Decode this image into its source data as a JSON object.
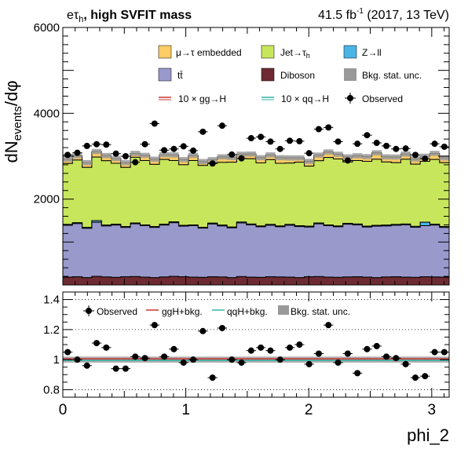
{
  "header": {
    "channel": "eτ",
    "channel_sub": "h",
    "category": ", high SVFIT mass",
    "lumi": "41.5 fb",
    "lumi_sup": "-1",
    "energy": " (2017, 13 TeV)"
  },
  "axes": {
    "ylabel_main": "dN",
    "ylabel_sub": "events",
    "ylabel_tail": "/dφ",
    "xlabel": "phi_2",
    "main_ticks": [
      "2000",
      "4000",
      "6000"
    ],
    "ratio_ticks": [
      "0.8",
      "1",
      "1.2",
      "1.4"
    ],
    "x_ticks": [
      "0",
      "1",
      "2",
      "3"
    ]
  },
  "legend_main": {
    "embedded": "μ→τ embedded",
    "jetfake": "Jet→τ",
    "jetfake_sub": "h",
    "zll": "Z→ll",
    "ttbar": "tt̄",
    "diboson": "Diboson",
    "bkgunc": "Bkg. stat. unc.",
    "ggh": "10 × gg→H",
    "qqh": "10 × qq→H",
    "observed": "Observed"
  },
  "legend_ratio": {
    "observed": "Observed",
    "ggh": "ggH+bkg.",
    "qqh": "qqH+bkg.",
    "bkgunc": "Bkg. stat. unc."
  },
  "colors": {
    "embedded": "#ffcc66",
    "jetfake": "#c8e65c",
    "zll": "#4ab4e6",
    "ttbar": "#9999cc",
    "diboson": "#6e2a32",
    "unc": "#999999",
    "ggh": "#cc3333",
    "qqh": "#33b3a6"
  },
  "chart_data": [
    {
      "type": "area",
      "title": "",
      "xlabel": "phi_2",
      "ylabel": "dN_events/dφ",
      "xlim": [
        0,
        3.14159
      ],
      "ylim": [
        0,
        6000
      ],
      "bins": 40,
      "stack_order": [
        "diboson",
        "ttbar",
        "zll",
        "jetfake",
        "embedded"
      ],
      "series": [
        {
          "name": "Diboson",
          "values": [
            180,
            190,
            170,
            200,
            185,
            175,
            190,
            195,
            180,
            170,
            185,
            200,
            190,
            180,
            175,
            190,
            185,
            170,
            195,
            180,
            175,
            190,
            185,
            180,
            170,
            190,
            195,
            180,
            175,
            185,
            190,
            180,
            170,
            185,
            190,
            180,
            175,
            190,
            185,
            180
          ]
        },
        {
          "name": "tt̄",
          "values": [
            1210,
            1240,
            1150,
            1260,
            1190,
            1220,
            1150,
            1230,
            1200,
            1170,
            1210,
            1250,
            1180,
            1200,
            1150,
            1230,
            1190,
            1160,
            1250,
            1220,
            1180,
            1200,
            1170,
            1210,
            1190,
            1160,
            1230,
            1200,
            1180,
            1230,
            1210,
            1170,
            1200,
            1190,
            1200,
            1220,
            1170,
            1190,
            1210,
            1160
          ]
        },
        {
          "name": "Z→ll",
          "values": [
            20,
            20,
            20,
            40,
            20,
            20,
            20,
            20,
            20,
            20,
            20,
            20,
            20,
            20,
            20,
            20,
            20,
            20,
            20,
            20,
            20,
            20,
            20,
            20,
            20,
            20,
            20,
            20,
            20,
            20,
            20,
            20,
            20,
            20,
            20,
            20,
            20,
            80,
            20,
            20
          ]
        },
        {
          "name": "Jet→τh",
          "values": [
            1420,
            1460,
            1400,
            1480,
            1500,
            1420,
            1380,
            1530,
            1500,
            1450,
            1510,
            1430,
            1410,
            1500,
            1440,
            1400,
            1460,
            1510,
            1480,
            1520,
            1470,
            1510,
            1460,
            1430,
            1480,
            1400,
            1450,
            1570,
            1560,
            1430,
            1480,
            1510,
            1540,
            1470,
            1440,
            1510,
            1450,
            1420,
            1510,
            1490
          ]
        },
        {
          "name": "μ→τ embedded",
          "values": [
            100,
            100,
            110,
            130,
            120,
            110,
            110,
            90,
            120,
            120,
            110,
            130,
            120,
            120,
            90,
            80,
            130,
            110,
            100,
            110,
            120,
            110,
            130,
            120,
            100,
            110,
            130,
            130,
            110,
            120,
            110,
            110,
            150,
            120,
            130,
            120,
            120,
            120,
            140,
            110
          ]
        }
      ],
      "observed": [
        3030,
        3080,
        3240,
        3280,
        3270,
        3060,
        3000,
        2860,
        3280,
        3760,
        3140,
        3170,
        3230,
        3130,
        3570,
        2830,
        3710,
        3040,
        2950,
        3420,
        3450,
        3340,
        3170,
        3360,
        3350,
        3070,
        3630,
        3670,
        3340,
        2900,
        3290,
        3490,
        3310,
        3240,
        3170,
        3180,
        3030,
        2940,
        3290,
        3220
      ],
      "observed_err": 55,
      "unc_band": 60,
      "legend": [
        "μ→τ embedded",
        "Jet→τh",
        "Z→ll",
        "tt̄",
        "Diboson",
        "Bkg. stat. unc.",
        "10 × gg→H",
        "10 × qq→H",
        "Observed"
      ]
    },
    {
      "type": "scatter",
      "title": "",
      "xlabel": "phi_2",
      "ylabel": "",
      "xlim": [
        0,
        3.14159
      ],
      "ylim": [
        0.75,
        1.45
      ],
      "grid": true,
      "observed": [
        1.05,
        1.0,
        0.96,
        1.11,
        1.08,
        0.94,
        0.94,
        1.02,
        1.01,
        1.23,
        1.02,
        1.07,
        0.98,
        1.0,
        1.19,
        0.88,
        1.21,
        1.0,
        0.98,
        1.06,
        1.08,
        1.06,
        1.0,
        1.08,
        1.1,
        0.97,
        1.04,
        1.23,
        0.98,
        1.04,
        0.91,
        1.07,
        1.09,
        1.02,
        1.01,
        0.97,
        0.88,
        0.89,
        1.05,
        1.05
      ],
      "observed_err": 0.02,
      "unc_band": 0.02,
      "legend": [
        "Observed",
        "ggH+bkg.",
        "qqH+bkg.",
        "Bkg. stat. unc."
      ]
    }
  ]
}
